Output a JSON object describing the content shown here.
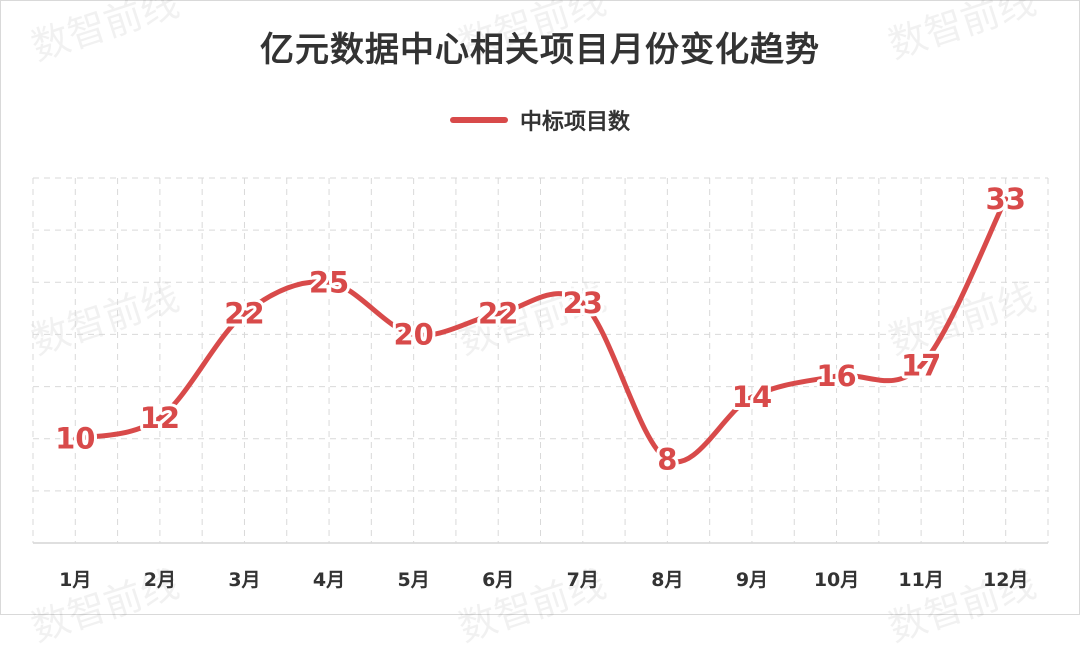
{
  "watermark_text": "数智前线",
  "chart_data": {
    "type": "line",
    "title": "亿元数据中心相关项目月份变化趋势",
    "categories": [
      "1月",
      "2月",
      "3月",
      "4月",
      "5月",
      "6月",
      "7月",
      "8月",
      "9月",
      "10月",
      "11月",
      "12月"
    ],
    "series": [
      {
        "name": "中标项目数",
        "values": [
          10,
          12,
          22,
          25,
          20,
          22,
          23,
          8,
          14,
          16,
          17,
          33
        ],
        "color": "#d84a4a"
      }
    ],
    "xlabel": "",
    "ylabel": "",
    "ylim": [
      0,
      35
    ],
    "grid": true,
    "legend_position": "top-center",
    "data_labels": true,
    "smooth": true
  }
}
